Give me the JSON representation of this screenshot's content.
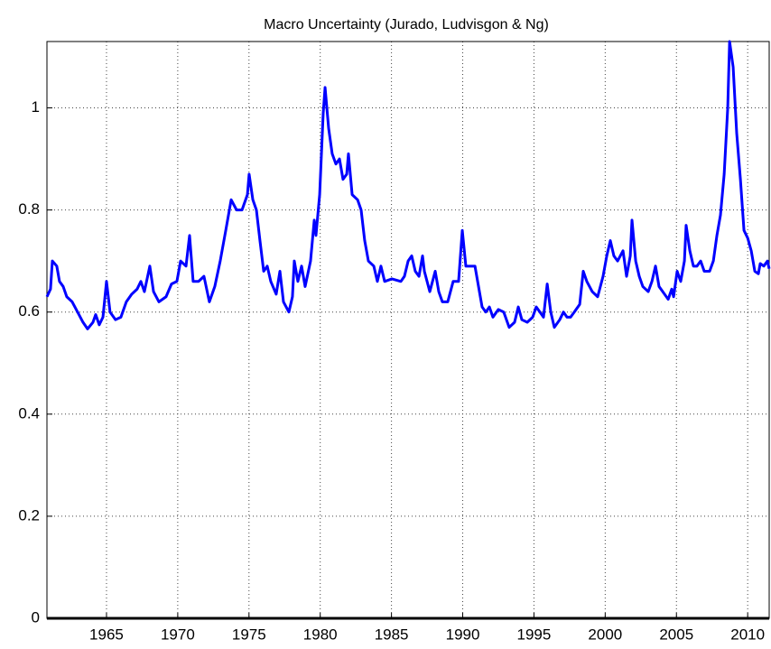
{
  "chart_data": {
    "type": "line",
    "title": "Macro Uncertainty  (Jurado, Ludvisgon & Ng)",
    "x": [
      1960.82,
      1961.07,
      1961.2,
      1961.51,
      1961.7,
      1961.96,
      1962.21,
      1962.59,
      1962.97,
      1963.35,
      1963.67,
      1964.05,
      1964.24,
      1964.49,
      1964.75,
      1965.0,
      1965.25,
      1965.63,
      1966.01,
      1966.39,
      1966.77,
      1967.15,
      1967.41,
      1967.66,
      1968.04,
      1968.3,
      1968.68,
      1969.18,
      1969.56,
      1969.94,
      1970.2,
      1970.58,
      1970.83,
      1971.08,
      1971.46,
      1971.84,
      1972.22,
      1972.6,
      1972.98,
      1973.37,
      1973.75,
      1974.13,
      1974.51,
      1974.89,
      1975.01,
      1975.27,
      1975.52,
      1975.77,
      1976.03,
      1976.28,
      1976.53,
      1976.91,
      1977.17,
      1977.42,
      1977.8,
      1978.05,
      1978.18,
      1978.43,
      1978.69,
      1978.94,
      1979.32,
      1979.58,
      1979.7,
      1979.96,
      1980.21,
      1980.34,
      1980.59,
      1980.84,
      1981.1,
      1981.35,
      1981.6,
      1981.86,
      1981.98,
      1982.24,
      1982.62,
      1982.87,
      1983.12,
      1983.38,
      1983.76,
      1984.01,
      1984.26,
      1984.52,
      1985.03,
      1985.66,
      1985.91,
      1986.17,
      1986.42,
      1986.67,
      1986.93,
      1987.18,
      1987.31,
      1987.69,
      1988.07,
      1988.32,
      1988.57,
      1988.95,
      1989.33,
      1989.71,
      1989.97,
      1990.22,
      1990.6,
      1990.86,
      1991.11,
      1991.36,
      1991.62,
      1991.87,
      1992.12,
      1992.5,
      1992.88,
      1993.26,
      1993.64,
      1993.9,
      1994.15,
      1994.53,
      1994.91,
      1995.16,
      1995.42,
      1995.67,
      1995.93,
      1996.18,
      1996.43,
      1996.81,
      1997.07,
      1997.32,
      1997.57,
      1997.83,
      1998.21,
      1998.46,
      1998.71,
      1999.09,
      1999.47,
      1999.85,
      2000.11,
      2000.36,
      2000.61,
      2000.87,
      2001.25,
      2001.5,
      2001.76,
      2001.88,
      2002.14,
      2002.39,
      2002.64,
      2003.02,
      2003.28,
      2003.53,
      2003.78,
      2004.04,
      2004.42,
      2004.67,
      2004.8,
      2005.05,
      2005.3,
      2005.56,
      2005.68,
      2005.94,
      2006.19,
      2006.44,
      2006.7,
      2006.95,
      2007.33,
      2007.59,
      2007.84,
      2008.09,
      2008.35,
      2008.6,
      2008.73,
      2008.98,
      2009.23,
      2009.49,
      2009.74,
      2010.0,
      2010.25,
      2010.5,
      2010.75,
      2010.88,
      2011.13,
      2011.39,
      2011.51
    ],
    "series": [
      {
        "color": "#0000ff",
        "values": [
          0.63,
          0.645,
          0.7,
          0.69,
          0.66,
          0.65,
          0.63,
          0.62,
          0.6,
          0.58,
          0.567,
          0.58,
          0.595,
          0.575,
          0.59,
          0.66,
          0.6,
          0.585,
          0.59,
          0.62,
          0.635,
          0.645,
          0.66,
          0.64,
          0.69,
          0.64,
          0.62,
          0.63,
          0.655,
          0.66,
          0.7,
          0.69,
          0.75,
          0.66,
          0.66,
          0.67,
          0.62,
          0.65,
          0.7,
          0.76,
          0.82,
          0.8,
          0.8,
          0.83,
          0.87,
          0.82,
          0.8,
          0.74,
          0.68,
          0.69,
          0.66,
          0.635,
          0.68,
          0.62,
          0.6,
          0.63,
          0.7,
          0.66,
          0.69,
          0.65,
          0.7,
          0.78,
          0.75,
          0.83,
          0.99,
          1.04,
          0.96,
          0.91,
          0.89,
          0.9,
          0.86,
          0.87,
          0.91,
          0.83,
          0.82,
          0.8,
          0.74,
          0.7,
          0.69,
          0.66,
          0.69,
          0.66,
          0.665,
          0.66,
          0.67,
          0.7,
          0.71,
          0.68,
          0.67,
          0.71,
          0.68,
          0.64,
          0.68,
          0.64,
          0.62,
          0.62,
          0.66,
          0.66,
          0.76,
          0.69,
          0.69,
          0.69,
          0.65,
          0.61,
          0.6,
          0.61,
          0.59,
          0.605,
          0.6,
          0.57,
          0.58,
          0.61,
          0.585,
          0.58,
          0.59,
          0.61,
          0.6,
          0.59,
          0.655,
          0.6,
          0.57,
          0.585,
          0.6,
          0.59,
          0.59,
          0.6,
          0.615,
          0.68,
          0.66,
          0.64,
          0.63,
          0.67,
          0.71,
          0.74,
          0.71,
          0.7,
          0.72,
          0.67,
          0.71,
          0.78,
          0.7,
          0.67,
          0.65,
          0.64,
          0.66,
          0.69,
          0.65,
          0.64,
          0.625,
          0.645,
          0.63,
          0.68,
          0.66,
          0.7,
          0.77,
          0.72,
          0.69,
          0.69,
          0.7,
          0.68,
          0.68,
          0.7,
          0.75,
          0.79,
          0.87,
          1.0,
          1.13,
          1.08,
          0.95,
          0.86,
          0.76,
          0.745,
          0.72,
          0.68,
          0.675,
          0.695,
          0.69,
          0.7,
          0.685
        ]
      }
    ],
    "xlim": [
      1960.82,
      2011.51
    ],
    "xticks": [
      1965,
      1970,
      1975,
      1980,
      1985,
      1990,
      1995,
      2000,
      2005,
      2010
    ],
    "ylim": [
      0,
      1.13
    ],
    "yticks": [
      0,
      0.2,
      0.4,
      0.6,
      0.8,
      1
    ],
    "grid": true
  }
}
